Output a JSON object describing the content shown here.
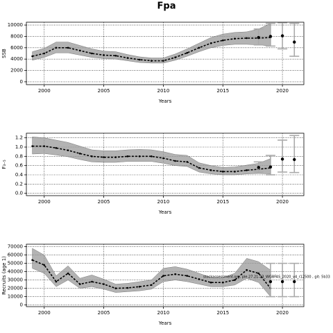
{
  "title": "Fpa",
  "chart_data": [
    {
      "type": "line",
      "y_label": "SSB",
      "x_label": "Years",
      "x": [
        1999,
        2000,
        2001,
        2002,
        2003,
        2004,
        2005,
        2006,
        2007,
        2008,
        2009,
        2010,
        2011,
        2012,
        2013,
        2014,
        2015,
        2016,
        2017,
        2018,
        2019
      ],
      "values": [
        4500,
        5000,
        6000,
        6000,
        5500,
        5000,
        4700,
        4600,
        4200,
        3900,
        3700,
        3700,
        4300,
        5100,
        6000,
        6800,
        7300,
        7600,
        7700,
        7700,
        7800
      ],
      "lower": [
        3800,
        4300,
        5100,
        5100,
        4700,
        4300,
        4100,
        4000,
        3700,
        3400,
        3300,
        3300,
        3800,
        4500,
        5300,
        6000,
        6400,
        6600,
        6600,
        6500,
        6300
      ],
      "upper": [
        5300,
        5900,
        7000,
        7000,
        6400,
        5800,
        5400,
        5300,
        4800,
        4400,
        4200,
        4200,
        4900,
        5800,
        6800,
        7800,
        8400,
        8700,
        8800,
        9300,
        10300
      ],
      "points": {
        "x": [
          2018,
          2019,
          2020,
          2021
        ],
        "values": [
          7800,
          8000,
          8100,
          7000
        ],
        "lower": [
          6500,
          6300,
          5800,
          4500
        ],
        "upper": [
          9300,
          10300,
          10400,
          10300
        ]
      },
      "xlim": [
        1998.5,
        2021.8
      ],
      "xticks": [
        2000,
        2005,
        2010,
        2015,
        2020
      ],
      "ylim": [
        -500,
        10500
      ],
      "yticks": [
        0,
        2000,
        4000,
        6000,
        8000,
        10000
      ],
      "grid": true,
      "color": "#000000",
      "band_color": "#9a9a9a",
      "bar_color": "#aaaaaa"
    },
    {
      "type": "line",
      "y_label": "F₃₋₅",
      "x_label": "Years",
      "x": [
        1999,
        2000,
        2001,
        2002,
        2003,
        2004,
        2005,
        2006,
        2007,
        2008,
        2009,
        2010,
        2011,
        2012,
        2013,
        2014,
        2015,
        2016,
        2017,
        2018,
        2019
      ],
      "values": [
        1.02,
        1.02,
        0.98,
        0.93,
        0.86,
        0.8,
        0.78,
        0.78,
        0.8,
        0.8,
        0.8,
        0.76,
        0.7,
        0.68,
        0.55,
        0.5,
        0.47,
        0.47,
        0.5,
        0.52,
        0.55
      ],
      "lower": [
        0.85,
        0.86,
        0.83,
        0.79,
        0.73,
        0.68,
        0.67,
        0.67,
        0.69,
        0.69,
        0.69,
        0.65,
        0.6,
        0.58,
        0.46,
        0.42,
        0.4,
        0.4,
        0.42,
        0.43,
        0.42
      ],
      "upper": [
        1.22,
        1.2,
        1.15,
        1.1,
        1.02,
        0.94,
        0.92,
        0.92,
        0.94,
        0.95,
        0.94,
        0.9,
        0.84,
        0.82,
        0.66,
        0.6,
        0.56,
        0.57,
        0.61,
        0.65,
        0.75
      ],
      "points": {
        "x": [
          2018,
          2019,
          2020,
          2021
        ],
        "values": [
          0.56,
          0.57,
          0.74,
          0.73
        ],
        "lower": [
          0.46,
          0.4,
          0.46,
          0.45
        ],
        "upper": [
          0.68,
          0.82,
          1.15,
          1.25
        ]
      },
      "xlim": [
        1998.5,
        2021.8
      ],
      "xticks": [
        2000,
        2005,
        2010,
        2015,
        2020
      ],
      "ylim": [
        -0.05,
        1.3
      ],
      "yticks": [
        {
          "value": 0,
          "label": "0.0"
        },
        0.2,
        0.4,
        0.6,
        0.8,
        {
          "value": 1,
          "label": "1.0"
        },
        1.2
      ],
      "grid": true,
      "color": "#000000",
      "band_color": "#9a9a9a",
      "bar_color": "#aaaaaa"
    },
    {
      "type": "line",
      "y_label": "Recruits (age 1)",
      "x_label": "Years",
      "annotation": "stockassessment.org, ple.27.21-23_WGBFAS_2020_v4_r12500 , git: 5b33",
      "x": [
        1999,
        2000,
        2001,
        2002,
        2003,
        2004,
        2005,
        2006,
        2007,
        2008,
        2009,
        2010,
        2011,
        2012,
        2013,
        2014,
        2015,
        2016,
        2017,
        2018,
        2019
      ],
      "values": [
        54000,
        48000,
        28000,
        38000,
        25000,
        28000,
        25000,
        20000,
        20500,
        22000,
        24000,
        35000,
        37000,
        35000,
        31000,
        27000,
        27000,
        30000,
        42000,
        38000,
        20000
      ],
      "lower": [
        44000,
        38000,
        22000,
        30000,
        20000,
        22000,
        19000,
        15000,
        16000,
        17000,
        19000,
        28000,
        30000,
        28000,
        25000,
        22000,
        22000,
        24000,
        32000,
        27000,
        10000
      ],
      "upper": [
        68000,
        60000,
        35000,
        47000,
        32000,
        36000,
        31000,
        25000,
        26000,
        28000,
        30000,
        44000,
        46000,
        43000,
        38000,
        33000,
        33000,
        38000,
        56000,
        52000,
        42000
      ],
      "points": {
        "x": [
          2019,
          2020,
          2021
        ],
        "values": [
          28000,
          28000,
          28000
        ],
        "lower": [
          10000,
          10000,
          10000
        ],
        "upper": [
          50000,
          50000,
          50000
        ]
      },
      "xlim": [
        1998.5,
        2021.8
      ],
      "xticks": [
        2000,
        2005,
        2010,
        2015,
        2020
      ],
      "ylim": [
        -2000,
        73000
      ],
      "yticks": [
        0,
        10000,
        20000,
        30000,
        40000,
        50000,
        60000,
        70000
      ],
      "grid": true,
      "color": "#000000",
      "band_color": "#9a9a9a",
      "bar_color": "#aaaaaa"
    }
  ]
}
